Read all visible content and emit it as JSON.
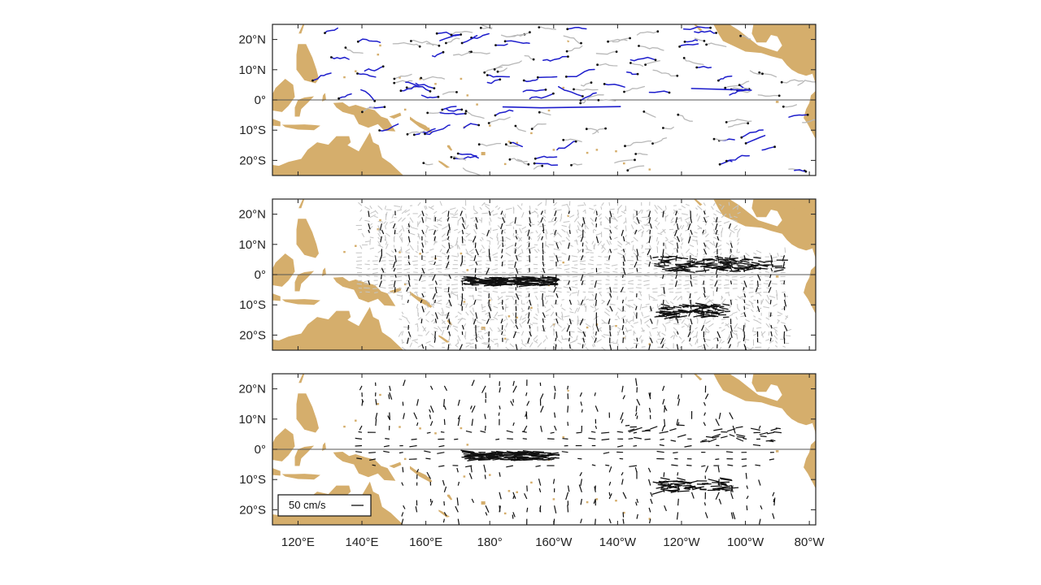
{
  "figure": {
    "map_extent": {
      "lon_min": 112,
      "lon_max": 282,
      "lat_min": -25,
      "lat_max": 25
    },
    "lat_ticks": [
      {
        "value": 20,
        "label": "20°N"
      },
      {
        "value": 10,
        "label": "10°N"
      },
      {
        "value": 0,
        "label": "0°"
      },
      {
        "value": -10,
        "label": "10°S"
      },
      {
        "value": -20,
        "label": "20°S"
      }
    ],
    "lon_ticks": [
      {
        "value": 120,
        "label": "120°E"
      },
      {
        "value": 140,
        "label": "140°E"
      },
      {
        "value": 160,
        "label": "160°E"
      },
      {
        "value": 180,
        "label": "180°"
      },
      {
        "value": 200,
        "label": "160°W"
      },
      {
        "value": 220,
        "label": "140°W"
      },
      {
        "value": 240,
        "label": "120°W"
      },
      {
        "value": 260,
        "label": "100°W"
      },
      {
        "value": 280,
        "label": "80°W"
      }
    ],
    "colors": {
      "land": "#d5ae6c",
      "frame": "#222222",
      "equator": "#555555",
      "drifter_blue": "#1d1dcc",
      "drifter_gray": "#b8b8b8",
      "vector_black": "#111111",
      "vector_gray": "#c4c4c4"
    },
    "panels": [
      {
        "id": "top",
        "content": "drifter trajectories (blue and gray)"
      },
      {
        "id": "middle",
        "content": "gridded velocity vectors (gray and black)"
      },
      {
        "id": "bottom",
        "content": "velocity vectors (black)"
      }
    ],
    "legend": {
      "label": "50 cm/s",
      "scale_cm_s": 50
    }
  }
}
